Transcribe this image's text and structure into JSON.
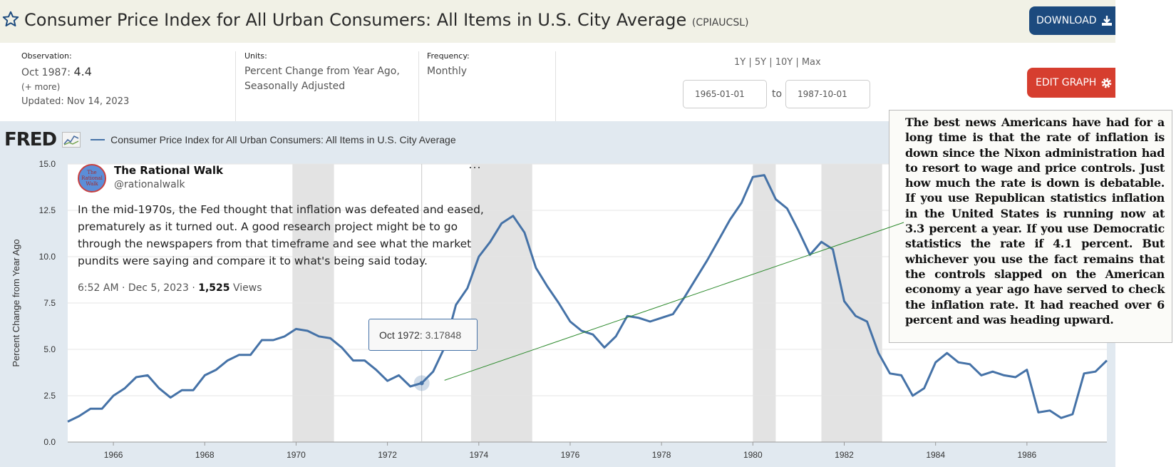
{
  "header": {
    "title": "Consumer Price Index for All Urban Consumers: All Items in U.S. City Average",
    "series_code": "(CPIAUCSL)",
    "download_label": "DOWNLOAD",
    "download_icon": "download-icon",
    "favorite_icon": "star-icon"
  },
  "observation": {
    "label": "Observation:",
    "date": "Oct 1987:",
    "value": "4.4",
    "more": "(+ more)",
    "updated": "Updated: Nov 14, 2023"
  },
  "units": {
    "label": "Units:",
    "line1": "Percent Change from Year Ago,",
    "line2": "Seasonally Adjusted"
  },
  "frequency": {
    "label": "Frequency:",
    "value": "Monthly"
  },
  "range": {
    "links": "1Y | 5Y | 10Y | Max",
    "start": "1965-01-01",
    "to": "to",
    "end": "1987-10-01"
  },
  "edit_graph_label": "EDIT GRAPH",
  "fred": {
    "logo": "FRED",
    "series_title": "Consumer Price Index for All Urban Consumers: All Items in U.S. City Average"
  },
  "tweet": {
    "avatar_text": "The Rational Walk",
    "name": "The Rational Walk",
    "handle": "@rationalwalk",
    "more": "···",
    "text": "In the mid-1970s, the Fed thought that inflation was defeated and eased, prematurely as it turned out. A good research project might be to go through the newspapers from that timeframe and see what the market pundits were saying and compare it to what's being said today.",
    "time": "6:52 AM · Dec 5, 2023 · ",
    "views_count": "1,525",
    "views_label": " Views"
  },
  "tooltip": {
    "date": "Oct 1972:",
    "value": "3.17848"
  },
  "clipping": {
    "text": "The best news Americans have had for a long time is that the rate of inflation is down since the Nixon administration had to resort to wage and price controls. Just how much the rate is down is debatable. If you use Republican statistics inflation in the United States is running now at 3.3 percent a year. If you use Democratic statistics the rate if 4.1 percent. But whichever you use the fact remains that the controls slapped on the American economy a year ago have served to check the inflation rate. It had reached over 6 percent and was heading upward."
  },
  "colors": {
    "line": "#4572a7",
    "recession": "#e3e3e3",
    "plot_bg": "#ffffff",
    "chart_bg": "#e1e9f0",
    "download": "#1c4a7e",
    "edit": "#d63e2f",
    "annotation": "#2e8b2e"
  },
  "chart_data": {
    "type": "line",
    "title": "Consumer Price Index for All Urban Consumers: All Items in U.S. City Average",
    "xlabel": "",
    "ylabel": "Percent Change from Year Ago",
    "xlim": [
      1965.0,
      1987.75
    ],
    "ylim": [
      0,
      15
    ],
    "yticks": [
      "0.0",
      "2.5",
      "5.0",
      "7.5",
      "10.0",
      "12.5",
      "15.0"
    ],
    "xticks": [
      "1966",
      "1968",
      "1970",
      "1972",
      "1974",
      "1976",
      "1978",
      "1980",
      "1982",
      "1984",
      "1986"
    ],
    "grid": true,
    "recessions": [
      [
        1969.92,
        1970.83
      ],
      [
        1973.83,
        1975.17
      ],
      [
        1980.0,
        1980.5
      ],
      [
        1981.5,
        1982.83
      ]
    ],
    "highlight": {
      "x": 1972.75,
      "y": 3.17848
    },
    "series": [
      {
        "x": [
          1965.0,
          1965.25,
          1965.5,
          1965.75,
          1966.0,
          1966.25,
          1966.5,
          1966.75,
          1967.0,
          1967.25,
          1967.5,
          1967.75,
          1968.0,
          1968.25,
          1968.5,
          1968.75,
          1969.0,
          1969.25,
          1969.5,
          1969.75,
          1970.0,
          1970.25,
          1970.5,
          1970.75,
          1971.0,
          1971.25,
          1971.5,
          1971.75,
          1972.0,
          1972.25,
          1972.5,
          1972.75,
          1973.0,
          1973.25,
          1973.5,
          1973.75,
          1974.0,
          1974.25,
          1974.5,
          1974.75,
          1975.0,
          1975.25,
          1975.5,
          1975.75,
          1976.0,
          1976.25,
          1976.5,
          1976.75,
          1977.0,
          1977.25,
          1977.5,
          1977.75,
          1978.0,
          1978.25,
          1978.5,
          1978.75,
          1979.0,
          1979.25,
          1979.5,
          1979.75,
          1980.0,
          1980.25,
          1980.5,
          1980.75,
          1981.0,
          1981.25,
          1981.5,
          1981.75,
          1982.0,
          1982.25,
          1982.5,
          1982.75,
          1983.0,
          1983.25,
          1983.5,
          1983.75,
          1984.0,
          1984.25,
          1984.5,
          1984.75,
          1985.0,
          1985.25,
          1985.5,
          1985.75,
          1986.0,
          1986.25,
          1986.5,
          1986.75,
          1987.0,
          1987.25,
          1987.5,
          1987.75
        ],
        "values": [
          1.1,
          1.4,
          1.8,
          1.8,
          2.5,
          2.9,
          3.5,
          3.6,
          2.9,
          2.4,
          2.8,
          2.8,
          3.6,
          3.9,
          4.4,
          4.7,
          4.7,
          5.5,
          5.5,
          5.7,
          6.1,
          6.0,
          5.7,
          5.6,
          5.1,
          4.4,
          4.4,
          3.9,
          3.3,
          3.6,
          3.0,
          3.18,
          3.8,
          5.1,
          7.4,
          8.3,
          10.0,
          10.8,
          11.8,
          12.2,
          11.3,
          9.4,
          8.4,
          7.5,
          6.5,
          6.0,
          5.8,
          5.1,
          5.7,
          6.8,
          6.7,
          6.5,
          6.7,
          6.9,
          7.8,
          8.8,
          9.8,
          10.9,
          12.0,
          12.9,
          14.3,
          14.4,
          13.1,
          12.6,
          11.4,
          10.1,
          10.8,
          10.4,
          7.6,
          6.8,
          6.5,
          4.8,
          3.7,
          3.6,
          2.5,
          2.9,
          4.3,
          4.8,
          4.3,
          4.2,
          3.6,
          3.8,
          3.6,
          3.5,
          3.9,
          1.6,
          1.7,
          1.3,
          1.5,
          3.7,
          3.8,
          4.4
        ]
      }
    ]
  }
}
